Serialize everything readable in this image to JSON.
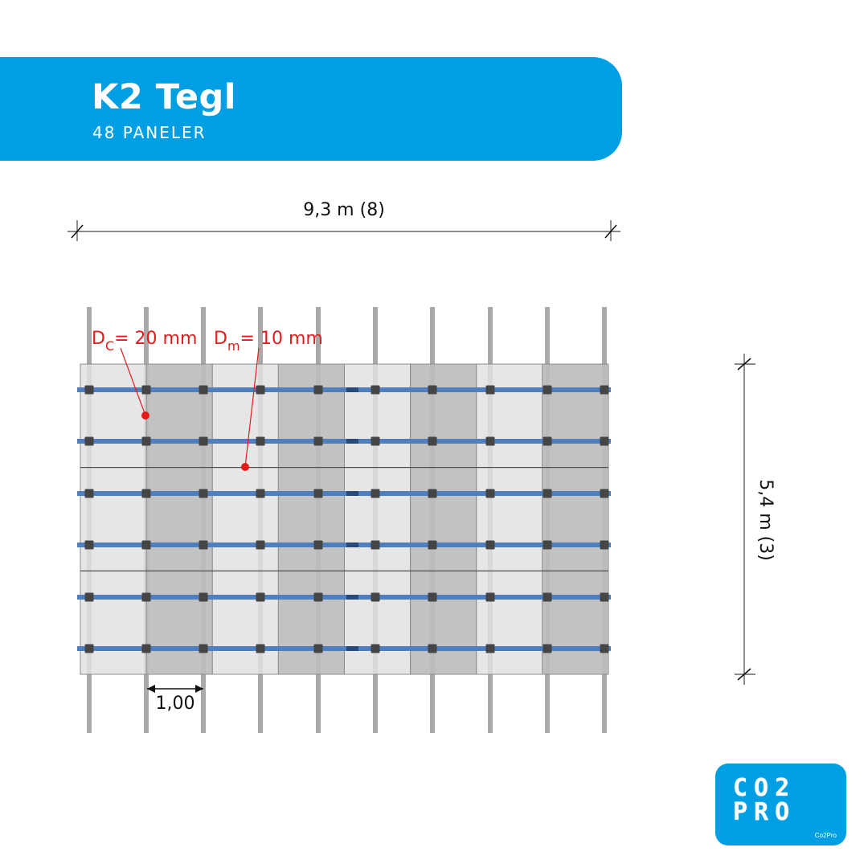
{
  "header": {
    "title": "K2 Tegl",
    "subtitle": "48 PANELER"
  },
  "dimensions": {
    "width_label": "9,3 m (8)",
    "height_label": "5,4 m (3)",
    "spacing_label": "1,00"
  },
  "annotations": {
    "dc": {
      "symbol": "D",
      "subscript": "C",
      "value": "= 20 mm"
    },
    "dm": {
      "symbol": "D",
      "subscript": "m",
      "value": "= 10 mm"
    }
  },
  "layout": {
    "panel_columns": 8,
    "panel_rows": 3,
    "posts": 10,
    "rails": 6
  },
  "logo": {
    "line1": "CO2",
    "line2": "PRO",
    "small": "Co2Pro"
  },
  "colors": {
    "brand": "#009fe3",
    "rail": "#4f7fbe",
    "post": "#a9a9a9",
    "panel_light": "#e2e2e2",
    "panel_dark": "#bdbdbd",
    "clamp": "#454545",
    "annotation": "#e31b1b"
  }
}
